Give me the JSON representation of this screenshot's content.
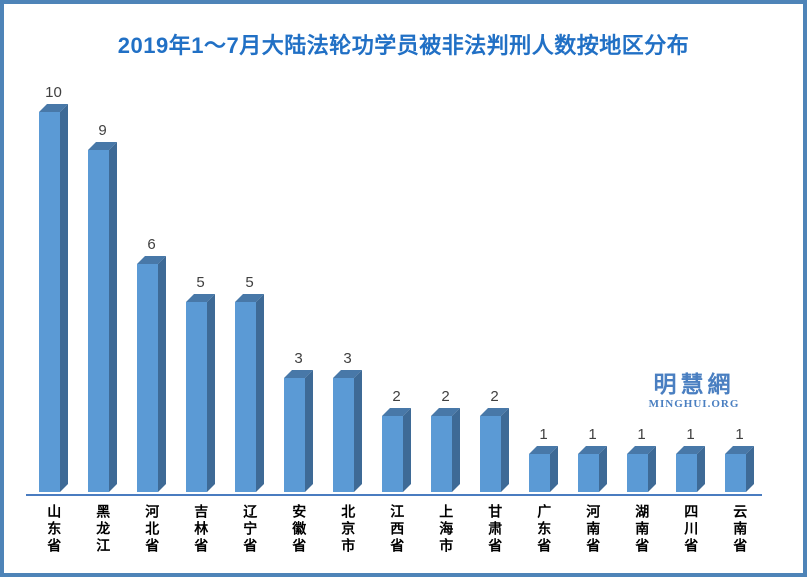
{
  "frame": {
    "border_color": "#4e84b8",
    "background_color": "#ffffff"
  },
  "title": "2019年1～7月大陆法轮功学员被非法判刑人数按地区分布",
  "title_color": "#2170c5",
  "watermark": {
    "cjk": "明慧網",
    "latin": "MINGHUI.ORG",
    "color": "#4a7fc1"
  },
  "chart_data": {
    "type": "bar",
    "style": "3d-column",
    "title": "2019年1～7月大陆法轮功学员被非法判刑人数按地区分布",
    "categories": [
      "山东省",
      "黑龙江",
      "河北省",
      "吉林省",
      "辽宁省",
      "安徽省",
      "北京市",
      "江西省",
      "上海市",
      "甘肃省",
      "广东省",
      "河南省",
      "湖南省",
      "四川省",
      "云南省"
    ],
    "values": [
      10,
      9,
      6,
      5,
      5,
      3,
      3,
      2,
      2,
      2,
      1,
      1,
      1,
      1,
      1
    ],
    "xlabel": "",
    "ylabel": "",
    "ylim": [
      0,
      10
    ],
    "grid": false,
    "legend": false,
    "data_labels": true,
    "bar_front_color": "#5b9ad5",
    "bar_top_color": "#4878a8",
    "bar_side_color": "#3e6a96",
    "axis_line_color": "#4a7cc0",
    "value_label_color": "#404040",
    "category_label_color": "#000000"
  }
}
